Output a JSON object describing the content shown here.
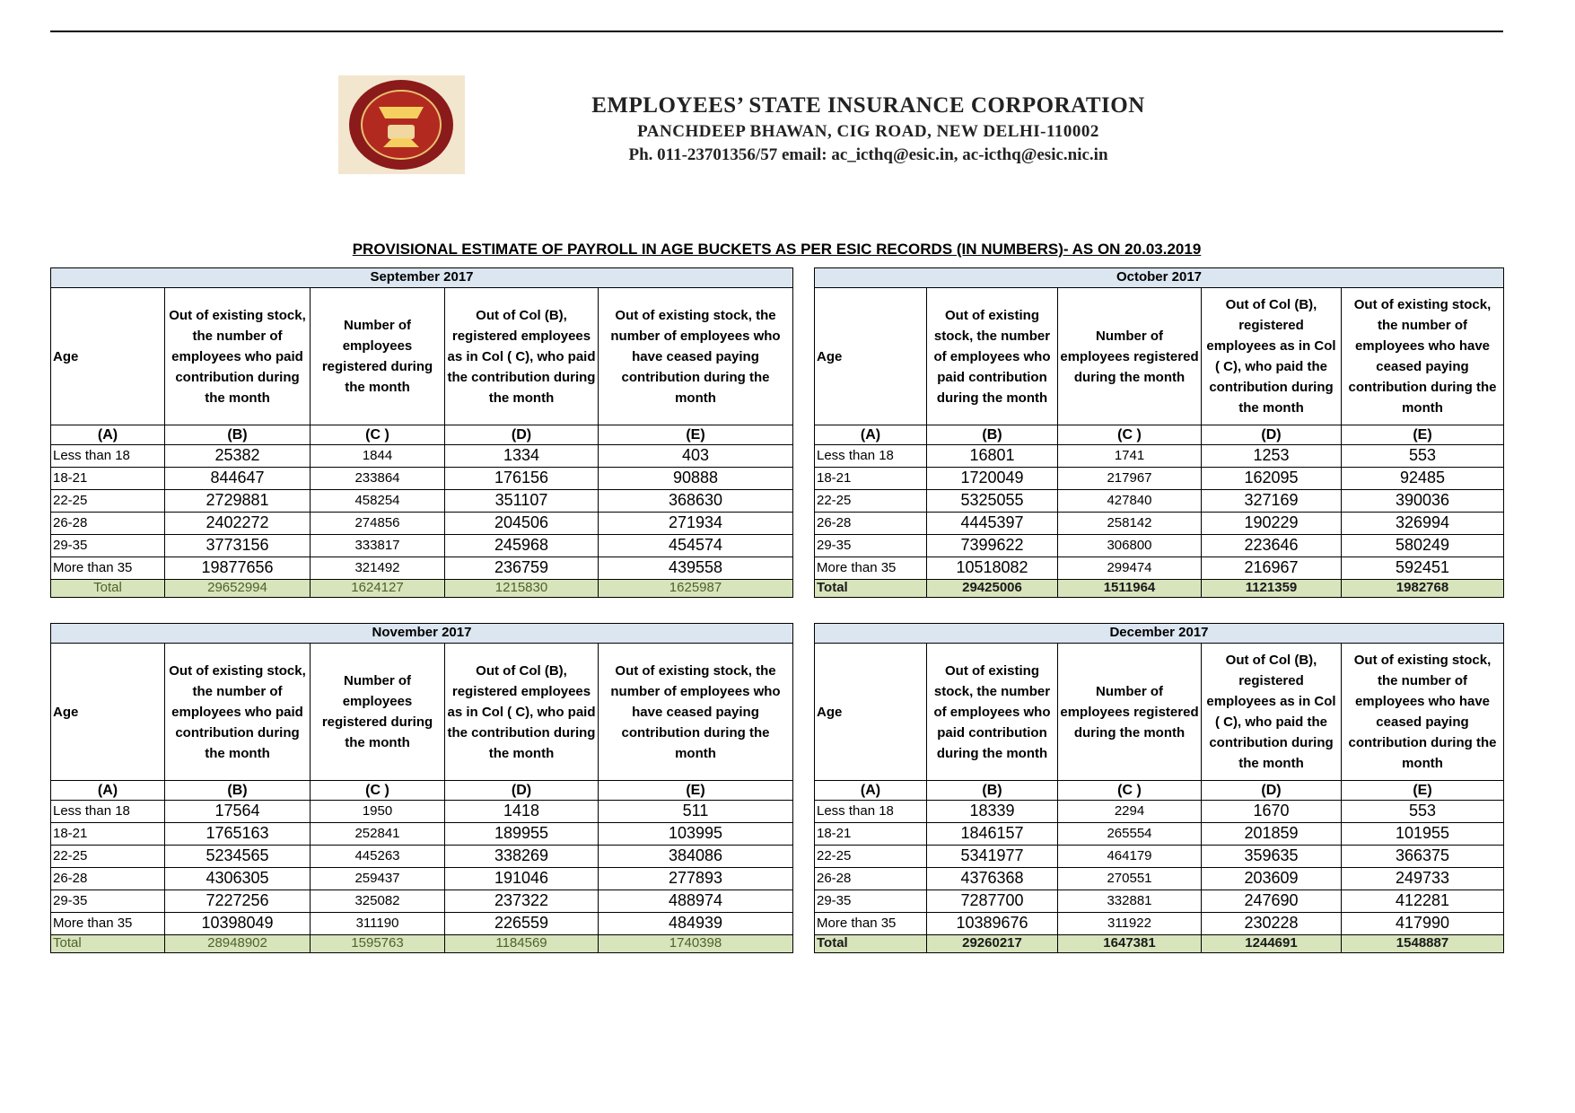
{
  "header": {
    "org": "EMPLOYEES’ STATE INSURANCE CORPORATION",
    "address": "PANCHDEEP BHAWAN, CIG ROAD, NEW DELHI-110002",
    "contact": "Ph. 011-23701356/57 email: ac_icthq@esic.in, ac-icthq@esic.nic.in",
    "logo_text": "ESIC"
  },
  "title": "PROVISIONAL ESTIMATE OF PAYROLL IN AGE BUCKETS AS PER ESIC RECORDS (IN NUMBERS)- AS ON 20.03.2019",
  "columns": [
    "Age",
    "Out of existing stock, the number of employees who paid contribution during the month",
    "Number of employees registered during the month",
    "Out of Col (B), registered employees as in Col ( C), who paid the contribution during the month",
    "Out of existing stock, the number of  employees  who have ceased paying contribution during the month"
  ],
  "letters": [
    "(A)",
    "(B)",
    "(C )",
    "(D)",
    "(E)"
  ],
  "ages": [
    "Less than 18",
    "18-21",
    "22-25",
    "26-28",
    "29-35",
    "More than 35"
  ],
  "total_label": "Total",
  "colors": {
    "header_bg": "#dce6f1",
    "total_bg": "#d8e4bc"
  },
  "tables": [
    {
      "month": "September 2017",
      "rows": [
        [
          "25382",
          "1844",
          "1334",
          "403"
        ],
        [
          "844647",
          "233864",
          "176156",
          "90888"
        ],
        [
          "2729881",
          "458254",
          "351107",
          "368630"
        ],
        [
          "2402272",
          "274856",
          "204506",
          "271934"
        ],
        [
          "3773156",
          "333817",
          "245968",
          "454574"
        ],
        [
          "19877656",
          "321492",
          "236759",
          "439558"
        ]
      ],
      "total": [
        "29652994",
        "1624127",
        "1215830",
        "1625987"
      ]
    },
    {
      "month": "October 2017",
      "rows": [
        [
          "16801",
          "1741",
          "1253",
          "553"
        ],
        [
          "1720049",
          "217967",
          "162095",
          "92485"
        ],
        [
          "5325055",
          "427840",
          "327169",
          "390036"
        ],
        [
          "4445397",
          "258142",
          "190229",
          "326994"
        ],
        [
          "7399622",
          "306800",
          "223646",
          "580249"
        ],
        [
          "10518082",
          "299474",
          "216967",
          "592451"
        ]
      ],
      "total": [
        "29425006",
        "1511964",
        "1121359",
        "1982768"
      ]
    },
    {
      "month": "November 2017",
      "rows": [
        [
          "17564",
          "1950",
          "1418",
          "511"
        ],
        [
          "1765163",
          "252841",
          "189955",
          "103995"
        ],
        [
          "5234565",
          "445263",
          "338269",
          "384086"
        ],
        [
          "4306305",
          "259437",
          "191046",
          "277893"
        ],
        [
          "7227256",
          "325082",
          "237322",
          "488974"
        ],
        [
          "10398049",
          "311190",
          "226559",
          "484939"
        ]
      ],
      "total": [
        "28948902",
        "1595763",
        "1184569",
        "1740398"
      ]
    },
    {
      "month": "December 2017",
      "rows": [
        [
          "18339",
          "2294",
          "1670",
          "553"
        ],
        [
          "1846157",
          "265554",
          "201859",
          "101955"
        ],
        [
          "5341977",
          "464179",
          "359635",
          "366375"
        ],
        [
          "4376368",
          "270551",
          "203609",
          "249733"
        ],
        [
          "7287700",
          "332881",
          "247690",
          "412281"
        ],
        [
          "10389676",
          "311922",
          "230228",
          "417990"
        ]
      ],
      "total": [
        "29260217",
        "1647381",
        "1244691",
        "1548887"
      ]
    }
  ]
}
